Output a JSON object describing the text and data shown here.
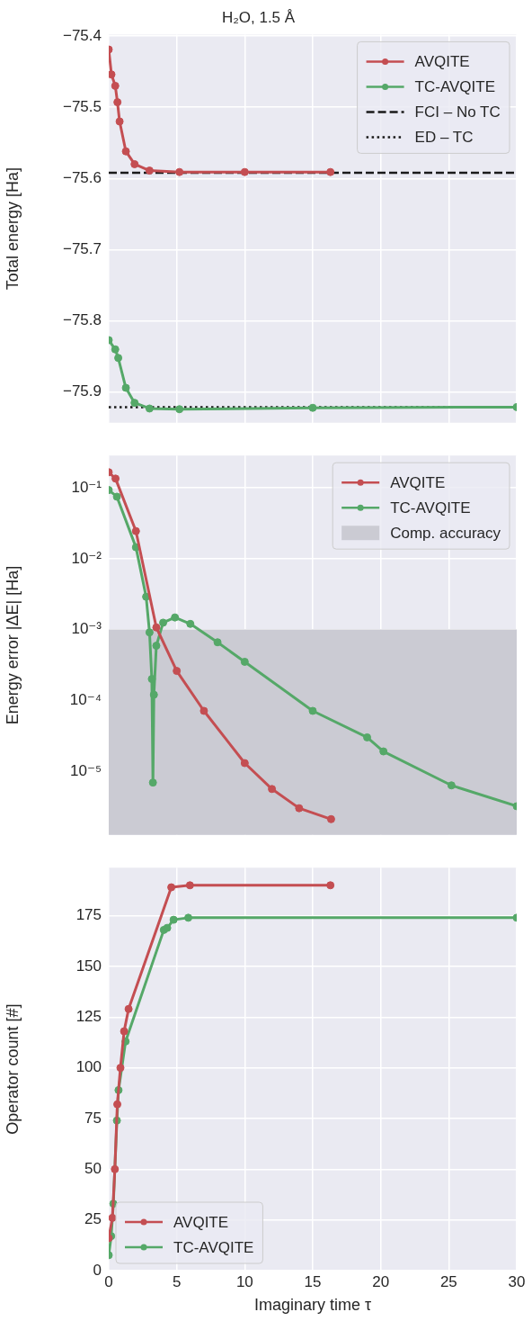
{
  "chart_data": [
    {
      "type": "line",
      "title": "H₂O, 1.5 Å",
      "ylabel": "Total energy [Ha]",
      "xlim": [
        0,
        30
      ],
      "xticks": [
        0,
        5,
        10,
        15,
        20,
        25,
        30
      ],
      "ylim": [
        -75.943,
        -75.398
      ],
      "yticks": [
        {
          "value": -75.9,
          "label": "−75.9"
        },
        {
          "value": -75.8,
          "label": "−75.8"
        },
        {
          "value": -75.7,
          "label": "−75.7"
        },
        {
          "value": -75.6,
          "label": "−75.6"
        },
        {
          "value": -75.5,
          "label": "−75.5"
        },
        {
          "value": -75.4,
          "label": "−75.4"
        }
      ],
      "tick_labels": "y",
      "grid": true,
      "legend": "top right",
      "marker": "circle",
      "line_style": "solid",
      "series": [
        {
          "name": "AVQITE",
          "color": "#c44e52",
          "x": [
            0,
            0.2,
            0.48,
            0.64,
            0.8,
            1.26,
            1.9,
            3,
            5.2,
            10,
            16.3
          ],
          "values": [
            -75.419,
            -75.454,
            -75.47,
            -75.493,
            -75.52,
            -75.562,
            -75.58,
            -75.589,
            -75.591,
            -75.591,
            -75.591
          ]
        },
        {
          "name": "TC-AVQITE",
          "color": "#55a868",
          "x": [
            0,
            0.48,
            0.7,
            1.26,
            1.9,
            3,
            5.2,
            15,
            30
          ],
          "values": [
            -75.827,
            -75.84,
            -75.852,
            -75.894,
            -75.915,
            -75.923,
            -75.924,
            -75.922,
            -75.921
          ]
        }
      ],
      "ref_lines": [
        {
          "axis": "y",
          "value": -75.592,
          "label": "FCI – No TC",
          "color": "#1a1a1a",
          "line_style": "dashed"
        },
        {
          "axis": "y",
          "value": -75.921,
          "label": "ED – TC",
          "color": "#1a1a1a",
          "line_style": "dotted"
        }
      ]
    },
    {
      "type": "line",
      "ylabel": "Energy error |ΔE| [Ha]",
      "log": "y",
      "xlim": [
        0,
        30
      ],
      "xticks": [
        0,
        5,
        10,
        15,
        20,
        25,
        30
      ],
      "ylim": [
        1.26e-06,
        0.286
      ],
      "yticks": [
        {
          "value": 1e-05,
          "label": "10⁻⁵"
        },
        {
          "value": 0.0001,
          "label": "10⁻⁴"
        },
        {
          "value": 0.001,
          "label": "10⁻³"
        },
        {
          "value": 0.01,
          "label": "10⁻²"
        },
        {
          "value": 0.1,
          "label": "10⁻¹"
        }
      ],
      "tick_labels": "y",
      "grid": true,
      "legend": "top right",
      "marker": "circle",
      "line_style": "solid",
      "series": [
        {
          "name": "AVQITE",
          "color": "#c44e52",
          "x": [
            0,
            0.5,
            2,
            3.5,
            5,
            7,
            10,
            12,
            14,
            16.35
          ],
          "values": [
            0.166,
            0.135,
            0.0245,
            0.00107,
            0.00026,
            7.1e-05,
            1.3e-05,
            5.6e-06,
            3e-06,
            2.1e-06
          ]
        },
        {
          "name": "TC-AVQITE",
          "color": "#55a868",
          "x": [
            0,
            0.6,
            2,
            2.75,
            3,
            3.17,
            3.25,
            3.32,
            3.5,
            4,
            4.87,
            6,
            8,
            10,
            15,
            19,
            20.2,
            25.2,
            30
          ],
          "values": [
            0.093,
            0.075,
            0.0145,
            0.0029,
            0.00091,
            0.0002,
            6.9e-06,
            0.00012,
            0.00059,
            0.00125,
            0.00148,
            0.0012,
            0.00066,
            0.00035,
            7.1e-05,
            3e-05,
            1.9e-05,
            6.3e-06,
            3.2e-06
          ]
        }
      ],
      "bands": [
        {
          "axis": "y",
          "from": 1.26e-06,
          "to": 0.001,
          "label": "Comp. accuracy",
          "color": "#cbcbd3"
        }
      ]
    },
    {
      "type": "line",
      "xlabel": "Imaginary time τ",
      "ylabel": "Operator count [#]",
      "xlim": [
        0,
        30
      ],
      "xticks": [
        0,
        5,
        10,
        15,
        20,
        25,
        30
      ],
      "ylim": [
        0,
        198.7
      ],
      "yticks": [
        0,
        25,
        50,
        75,
        100,
        125,
        150,
        175
      ],
      "grid": true,
      "legend": "bottom left",
      "marker": "circle",
      "line_style": "solid",
      "series": [
        {
          "name": "AVQITE",
          "color": "#c44e52",
          "x": [
            0,
            0.27,
            0.45,
            0.63,
            0.86,
            1.13,
            1.46,
            4.6,
            5.97,
            16.3
          ],
          "values": [
            16,
            26,
            50,
            82,
            100,
            118,
            129,
            189,
            190,
            190
          ]
        },
        {
          "name": "TC-AVQITE",
          "color": "#55a868",
          "x": [
            0,
            0.18,
            0.34,
            0.6,
            0.72,
            1.24,
            4.05,
            4.3,
            4.77,
            5.85,
            30
          ],
          "values": [
            7.6,
            17,
            33,
            74,
            89,
            113,
            168,
            169,
            173,
            174,
            174
          ]
        }
      ]
    }
  ]
}
